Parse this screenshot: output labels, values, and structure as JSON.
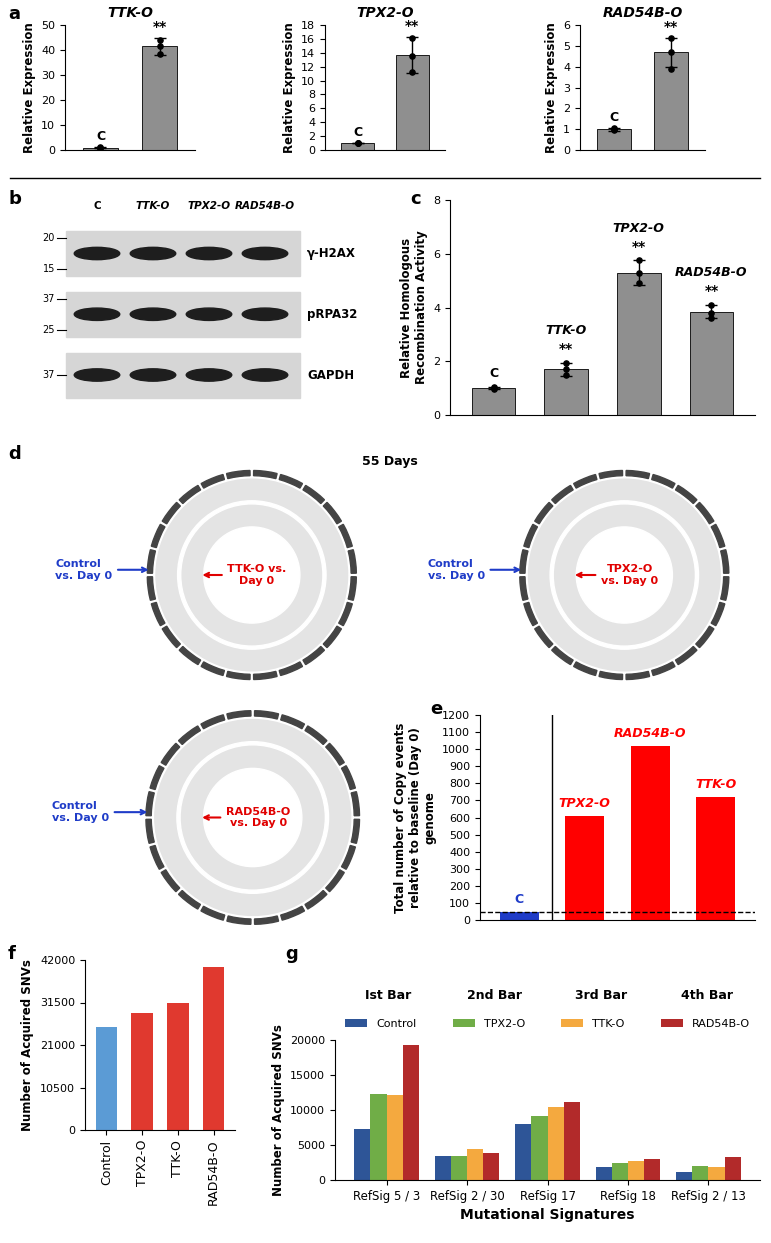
{
  "chart_data": [
    {
      "type": "bar",
      "panel": "a",
      "title": "TTK-O",
      "ylabel": "Relative Expression",
      "categories": [
        "C",
        null
      ],
      "values": [
        1.0,
        41.5
      ],
      "errors": [
        0.1,
        3.5
      ],
      "points": [
        [
          0.9,
          1.0,
          1.1
        ],
        [
          38.5,
          41.8,
          44.2
        ]
      ],
      "significance": [
        null,
        "**"
      ],
      "color": "#8f8f8f",
      "ylim": [
        0,
        50
      ],
      "yticks": [
        0,
        10,
        20,
        30,
        40,
        50
      ],
      "tick_labels": "y"
    },
    {
      "type": "bar",
      "title": "TPX2-O",
      "ylabel": "Relative Expression",
      "categories": [
        "C",
        null
      ],
      "values": [
        1.0,
        13.7
      ],
      "errors": [
        0.05,
        2.6
      ],
      "points": [
        [
          0.95,
          1.0,
          1.05
        ],
        [
          11.3,
          13.6,
          16.2
        ]
      ],
      "significance": [
        null,
        "**"
      ],
      "color": "#8f8f8f",
      "ylim": [
        0,
        18
      ],
      "yticks": [
        0,
        2,
        4,
        6,
        8,
        10,
        12,
        14,
        16,
        18
      ],
      "tick_labels": "y"
    },
    {
      "type": "bar",
      "title": "RAD54B-O",
      "ylabel": "Relative Expression",
      "categories": [
        "C",
        null
      ],
      "values": [
        1.0,
        4.7
      ],
      "errors": [
        0.08,
        0.7
      ],
      "points": [
        [
          0.95,
          1.0,
          1.05
        ],
        [
          3.9,
          4.7,
          5.4
        ]
      ],
      "significance": [
        null,
        "**"
      ],
      "color": "#8f8f8f",
      "ylim": [
        0,
        6
      ],
      "yticks": [
        0,
        1,
        2,
        3,
        4,
        5,
        6
      ],
      "tick_labels": "y"
    },
    {
      "type": "bar",
      "panel": "c",
      "ylabel": "Relative Homologous Recombination Activity",
      "categories": [
        "C",
        "TTK-O",
        "TPX2-O",
        "RAD54B-O"
      ],
      "values": [
        1.0,
        1.7,
        5.3,
        3.85
      ],
      "errors": [
        0.05,
        0.25,
        0.45,
        0.25
      ],
      "points": [
        [
          0.95,
          1.0,
          1.03
        ],
        [
          1.5,
          1.7,
          1.95
        ],
        [
          4.9,
          5.3,
          5.75
        ],
        [
          3.6,
          3.8,
          4.1
        ]
      ],
      "significance": [
        null,
        "**",
        "**",
        "**"
      ],
      "color": "#8f8f8f",
      "ylim": [
        0,
        8
      ],
      "yticks": [
        0,
        2,
        4,
        6,
        8
      ],
      "tick_labels": "y"
    },
    {
      "type": "bar",
      "panel": "e",
      "ylabel": "Total number of Copy events relative to baseline (Day 0) genome",
      "categories": [
        "C",
        "TPX2-O",
        "RAD54B-O",
        "TTK-O"
      ],
      "values": [
        45,
        610,
        1020,
        720
      ],
      "colors": [
        "#1f3cc8",
        "#ff0000",
        "#ff0000",
        "#ff0000"
      ],
      "reference_line": 45,
      "ylim": [
        0,
        1200
      ],
      "yticks": [
        0,
        100,
        200,
        300,
        400,
        500,
        600,
        700,
        800,
        900,
        1000,
        1100,
        1200
      ],
      "tick_labels": "y"
    },
    {
      "type": "bar",
      "panel": "f",
      "ylabel": "Number of Acquired SNVs",
      "categories": [
        "Control",
        "TPX2-O",
        "TTK-O",
        "RAD54B-O"
      ],
      "values": [
        25500,
        29000,
        31500,
        40300
      ],
      "colors": [
        "#5b9bd5",
        "#e0392f",
        "#e0392f",
        "#e0392f"
      ],
      "ylim": [
        0,
        42000
      ],
      "yticks": [
        0,
        10500,
        21000,
        31500,
        42000
      ]
    },
    {
      "type": "bar",
      "panel": "g",
      "xlabel": "Mutational Signatures",
      "ylabel": "Number of Acquired SNVs",
      "categories": [
        "RefSig 5 / 3",
        "RefSig 2 / 30",
        "RefSig 17",
        "RefSig 18",
        "RefSig 2 / 13"
      ],
      "series": [
        {
          "name": "Control",
          "color": "#2e5597",
          "values": [
            7300,
            3400,
            8000,
            1900,
            1200
          ]
        },
        {
          "name": "TPX2-O",
          "color": "#70ad47",
          "values": [
            12300,
            3500,
            9200,
            2500,
            2000
          ]
        },
        {
          "name": "TTK-O",
          "color": "#f4a93f",
          "values": [
            12100,
            4500,
            10400,
            2700,
            1800
          ]
        },
        {
          "name": "RAD54B-O",
          "color": "#b22a2a",
          "values": [
            19300,
            3900,
            11100,
            3000,
            3300
          ]
        }
      ],
      "annotations": [
        "Ist Bar",
        "2nd Bar",
        "3rd Bar",
        "4th Bar"
      ],
      "legend": "upper center",
      "ylim": [
        0,
        20000
      ],
      "yticks": [
        0,
        5000,
        10000,
        15000,
        20000
      ]
    }
  ],
  "blot": {
    "panel": "b",
    "lanes": [
      "C",
      "TTK-O",
      "TPX2-O",
      "RAD54B-O"
    ],
    "rows": [
      {
        "label": "γ-H2AX",
        "markers": [
          20,
          15
        ]
      },
      {
        "label": "pRPA32",
        "markers": [
          37,
          25
        ]
      },
      {
        "label": "GAPDH",
        "markers": [
          37
        ]
      }
    ]
  },
  "circos": {
    "panel": "d",
    "title": "55 Days",
    "plots": [
      {
        "outer": "Control vs. Day 0",
        "inner": "TTK-O vs. Day 0"
      },
      {
        "outer": "Control vs. Day 0",
        "inner": "TPX2-O vs. Day 0"
      },
      {
        "outer": "Control vs. Day 0",
        "inner": "RAD54B-O vs. Day 0"
      }
    ]
  }
}
